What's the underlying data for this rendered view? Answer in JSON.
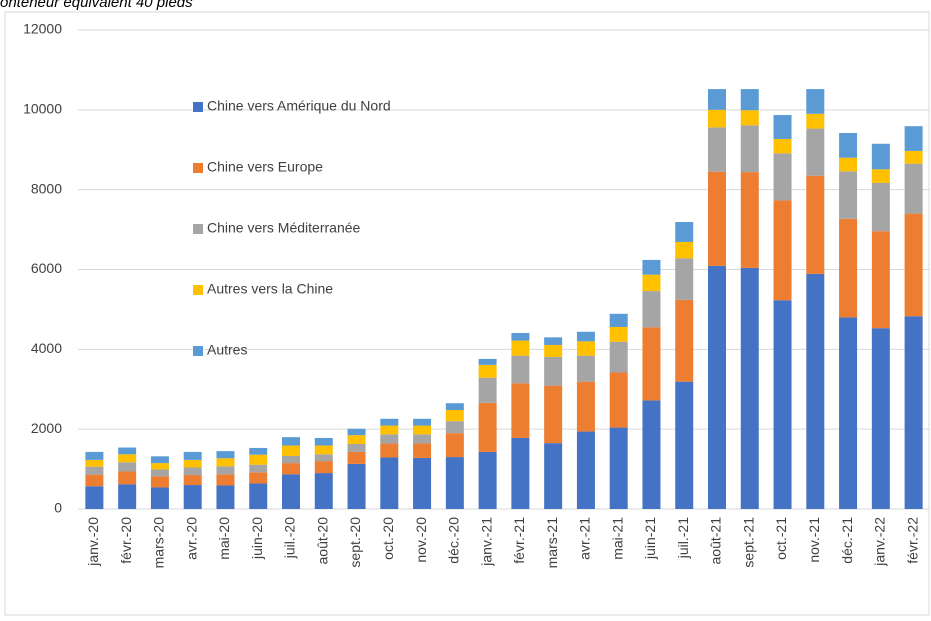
{
  "chart_data": {
    "type": "stacked_bar",
    "title": "onteneur équivalent 40 pieds",
    "categories": [
      "janv.-20",
      "févr.-20",
      "mars-20",
      "avr.-20",
      "mai-20",
      "juin-20",
      "juil.-20",
      "août-20",
      "sept.-20",
      "oct.-20",
      "nov.-20",
      "déc.-20",
      "janv.-21",
      "févr.-21",
      "mars-21",
      "avr.-21",
      "mai-21",
      "juin-21",
      "juil.-21",
      "août-21",
      "sept.-21",
      "oct.-21",
      "nov.-21",
      "déc.-21",
      "janv.-22",
      "févr.-22"
    ],
    "series": [
      {
        "name": "Chine vers Amérique du Nord",
        "color": "#4472c4",
        "values": [
          570,
          620,
          540,
          600,
          590,
          640,
          870,
          900,
          1130,
          1290,
          1280,
          1300,
          1430,
          1780,
          1650,
          1940,
          2040,
          2720,
          3190,
          6090,
          6040,
          5230,
          5890,
          4800,
          4530,
          4830
        ]
      },
      {
        "name": "Chine vers Europe",
        "color": "#ed7d31",
        "values": [
          290,
          320,
          280,
          250,
          280,
          280,
          280,
          300,
          300,
          350,
          360,
          600,
          1230,
          1370,
          1440,
          1250,
          1380,
          1830,
          2050,
          2360,
          2400,
          2500,
          2460,
          2470,
          2430,
          2570
        ]
      },
      {
        "name": "Chine vers Méditerranée",
        "color": "#a5a5a5",
        "values": [
          200,
          230,
          170,
          190,
          200,
          190,
          180,
          170,
          200,
          230,
          230,
          300,
          630,
          690,
          720,
          650,
          770,
          910,
          1040,
          1110,
          1170,
          1180,
          1180,
          1190,
          1210,
          1250
        ]
      },
      {
        "name": "Autres vers la Chine",
        "color": "#ffc000",
        "values": [
          170,
          200,
          160,
          190,
          200,
          250,
          260,
          220,
          220,
          220,
          220,
          280,
          320,
          380,
          300,
          360,
          370,
          410,
          410,
          440,
          380,
          360,
          370,
          340,
          340,
          320
        ]
      },
      {
        "name": "Autres",
        "color": "#5b9bd5",
        "values": [
          200,
          170,
          170,
          200,
          180,
          170,
          210,
          190,
          160,
          170,
          170,
          170,
          150,
          190,
          190,
          240,
          330,
          370,
          500,
          520,
          530,
          600,
          620,
          620,
          640,
          620
        ]
      }
    ],
    "ylim": [
      0,
      12000
    ],
    "yticks": [
      0,
      2000,
      4000,
      6000,
      8000,
      10000,
      12000
    ],
    "grid": true,
    "legend": "left"
  }
}
